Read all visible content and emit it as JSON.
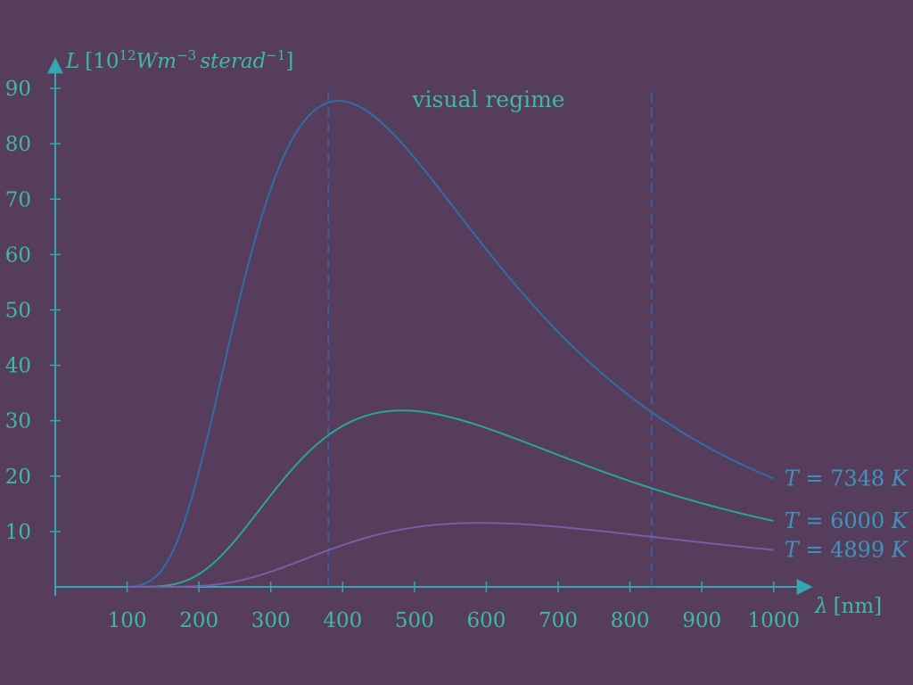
{
  "chart_data": {
    "type": "line",
    "ylabel": {
      "symbol": "L",
      "unit_open": "[10",
      "exp1": "12",
      "unit_mid": "Wm",
      "exp2": "−3",
      "unit_ster": "sterad",
      "exp3": "−1",
      "unit_close": "]"
    },
    "xlabel": {
      "symbol": "λ",
      "unit": "[nm]"
    },
    "xlim": [
      0,
      1050
    ],
    "ylim": [
      0,
      95
    ],
    "xticks": [
      100,
      200,
      300,
      400,
      500,
      600,
      700,
      800,
      900,
      1000
    ],
    "xtick_labels": [
      "100",
      "200",
      "300",
      "400",
      "500",
      "600",
      "700",
      "800",
      "900",
      "1000"
    ],
    "yticks": [
      10,
      20,
      30,
      40,
      50,
      60,
      70,
      80,
      90
    ],
    "ytick_labels": [
      "10",
      "20",
      "30",
      "40",
      "50",
      "60",
      "70",
      "80",
      "90"
    ],
    "grid": false,
    "x_range_plotted": [
      100,
      1000
    ],
    "vlines": [
      380,
      830
    ],
    "annotation": "visual regime",
    "series": [
      {
        "name": "T = 7348 K",
        "T": 7348,
        "color": "#2f6ea8",
        "label_parts": [
          "T",
          " = 7348 ",
          "K"
        ]
      },
      {
        "name": "T = 6000 K",
        "T": 6000,
        "color": "#2aa78f",
        "label_parts": [
          "T",
          " = 6000 ",
          "K"
        ]
      },
      {
        "name": "T = 4899 K",
        "T": 4899,
        "color": "#7f5aa6",
        "label_parts": [
          "T",
          " = 4899 ",
          "K"
        ]
      }
    ]
  },
  "colors": {
    "background": "#553d5b",
    "axis": "#36a6b3",
    "text": "#3fb8a7",
    "vline": "#3a5ea4"
  }
}
